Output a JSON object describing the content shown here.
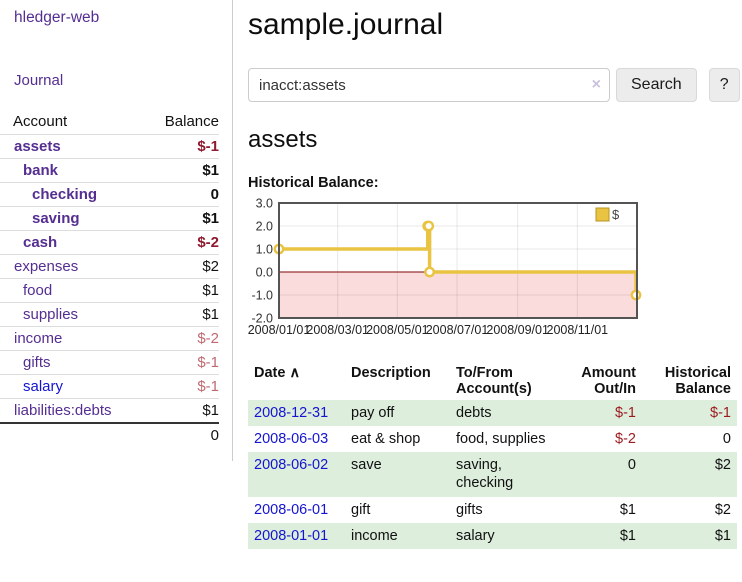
{
  "app": {
    "title": "hledger-web"
  },
  "colors": {
    "link_purple": "#552e91",
    "link_blue": "#1414d2",
    "negative": "#9c1b1e",
    "negative_bold": "#8e1a2e",
    "negative_dim": "#c06a72",
    "row_green": "#ddeedd",
    "series_gold": "#e9c342",
    "zero_line_red": "#993333",
    "negative_region_pink": "#fbdcdc"
  },
  "sidebar": {
    "journal_link": "Journal",
    "table": {
      "account_header": "Account",
      "balance_header": "Balance",
      "rows": [
        {
          "label": "assets",
          "balance": "$-1",
          "depth": 0,
          "bold": true,
          "label_color": "purple",
          "balance_style": "neg"
        },
        {
          "label": "bank",
          "balance": "$1",
          "depth": 1,
          "bold": true,
          "label_color": "purple",
          "balance_style": "pos"
        },
        {
          "label": "checking",
          "balance": "0",
          "depth": 2,
          "bold": true,
          "label_color": "purple",
          "balance_style": "pos"
        },
        {
          "label": "saving",
          "balance": "$1",
          "depth": 2,
          "bold": true,
          "label_color": "purple",
          "balance_style": "pos"
        },
        {
          "label": "cash",
          "balance": "$-2",
          "depth": 1,
          "bold": true,
          "label_color": "purple",
          "balance_style": "neg"
        },
        {
          "label": "expenses",
          "balance": "$2",
          "depth": 0,
          "bold": false,
          "label_color": "purple",
          "balance_style": "pos"
        },
        {
          "label": "food",
          "balance": "$1",
          "depth": 1,
          "bold": false,
          "label_color": "purple",
          "balance_style": "pos"
        },
        {
          "label": "supplies",
          "balance": "$1",
          "depth": 1,
          "bold": false,
          "label_color": "purple",
          "balance_style": "pos"
        },
        {
          "label": "income",
          "balance": "$-2",
          "depth": 0,
          "bold": false,
          "label_color": "purple",
          "balance_style": "negdim"
        },
        {
          "label": "gifts",
          "balance": "$-1",
          "depth": 1,
          "bold": false,
          "label_color": "purple",
          "balance_style": "negdim"
        },
        {
          "label": "salary",
          "balance": "$-1",
          "depth": 1,
          "bold": false,
          "label_color": "blue",
          "balance_style": "negdim"
        },
        {
          "label": "liabilities:debts",
          "balance": "$1",
          "depth": 0,
          "bold": false,
          "label_color": "purple",
          "balance_style": "pos"
        }
      ],
      "total": "0"
    }
  },
  "main": {
    "title": "sample.journal",
    "search": {
      "value": "inacct:assets",
      "clear_icon": "×",
      "button_label": "Search",
      "help_label": "?"
    },
    "account_heading": "assets",
    "chart_label": "Historical Balance:"
  },
  "chart_data": {
    "type": "line",
    "step": true,
    "title": "Historical Balance:",
    "x_range": [
      "2008-01-01",
      "2009-01-01"
    ],
    "ylim": [
      -2.0,
      3.0
    ],
    "grid": true,
    "legend": {
      "position": "top-right",
      "label": "$"
    },
    "y_ticks": [
      {
        "value": 3,
        "label": "3.0"
      },
      {
        "value": 2,
        "label": "2.0"
      },
      {
        "value": 1,
        "label": "1.0"
      },
      {
        "value": 0,
        "label": "0.0"
      },
      {
        "value": -1,
        "label": "-1.0"
      },
      {
        "value": -2,
        "label": "-2.0"
      }
    ],
    "x_ticks": [
      {
        "date": "2008-01-01",
        "label": "2008/01/01"
      },
      {
        "date": "2008-03-01",
        "label": "2008/03/01"
      },
      {
        "date": "2008-05-01",
        "label": "2008/05/01"
      },
      {
        "date": "2008-07-01",
        "label": "2008/07/01"
      },
      {
        "date": "2008-09-01",
        "label": "2008/09/01"
      },
      {
        "date": "2008-11-01",
        "label": "2008/11/01"
      }
    ],
    "series": [
      {
        "name": "$",
        "color": "#e9c342",
        "points": [
          {
            "date": "2008-01-01",
            "value": 1
          },
          {
            "date": "2008-06-01",
            "value": 2
          },
          {
            "date": "2008-06-02",
            "value": 2
          },
          {
            "date": "2008-06-03",
            "value": 0
          },
          {
            "date": "2008-12-31",
            "value": -1
          }
        ]
      }
    ]
  },
  "register": {
    "sort_indicator": "∧",
    "headers": [
      "Date",
      "Description",
      "To/From Account(s)",
      "Amount Out/In",
      "Historical Balance"
    ],
    "rows": [
      {
        "date": "2008-12-31",
        "description": "pay off",
        "accounts": "debts",
        "amount": "$-1",
        "amount_neg": true,
        "balance": "$-1",
        "balance_neg": true
      },
      {
        "date": "2008-06-03",
        "description": "eat & shop",
        "accounts": "food, supplies",
        "amount": "$-2",
        "amount_neg": true,
        "balance": "0",
        "balance_neg": false
      },
      {
        "date": "2008-06-02",
        "description": "save",
        "accounts": "saving, checking",
        "amount": "0",
        "amount_neg": false,
        "balance": "$2",
        "balance_neg": false
      },
      {
        "date": "2008-06-01",
        "description": "gift",
        "accounts": "gifts",
        "amount": "$1",
        "amount_neg": false,
        "balance": "$2",
        "balance_neg": false
      },
      {
        "date": "2008-01-01",
        "description": "income",
        "accounts": "salary",
        "amount": "$1",
        "amount_neg": false,
        "balance": "$1",
        "balance_neg": false
      }
    ]
  }
}
